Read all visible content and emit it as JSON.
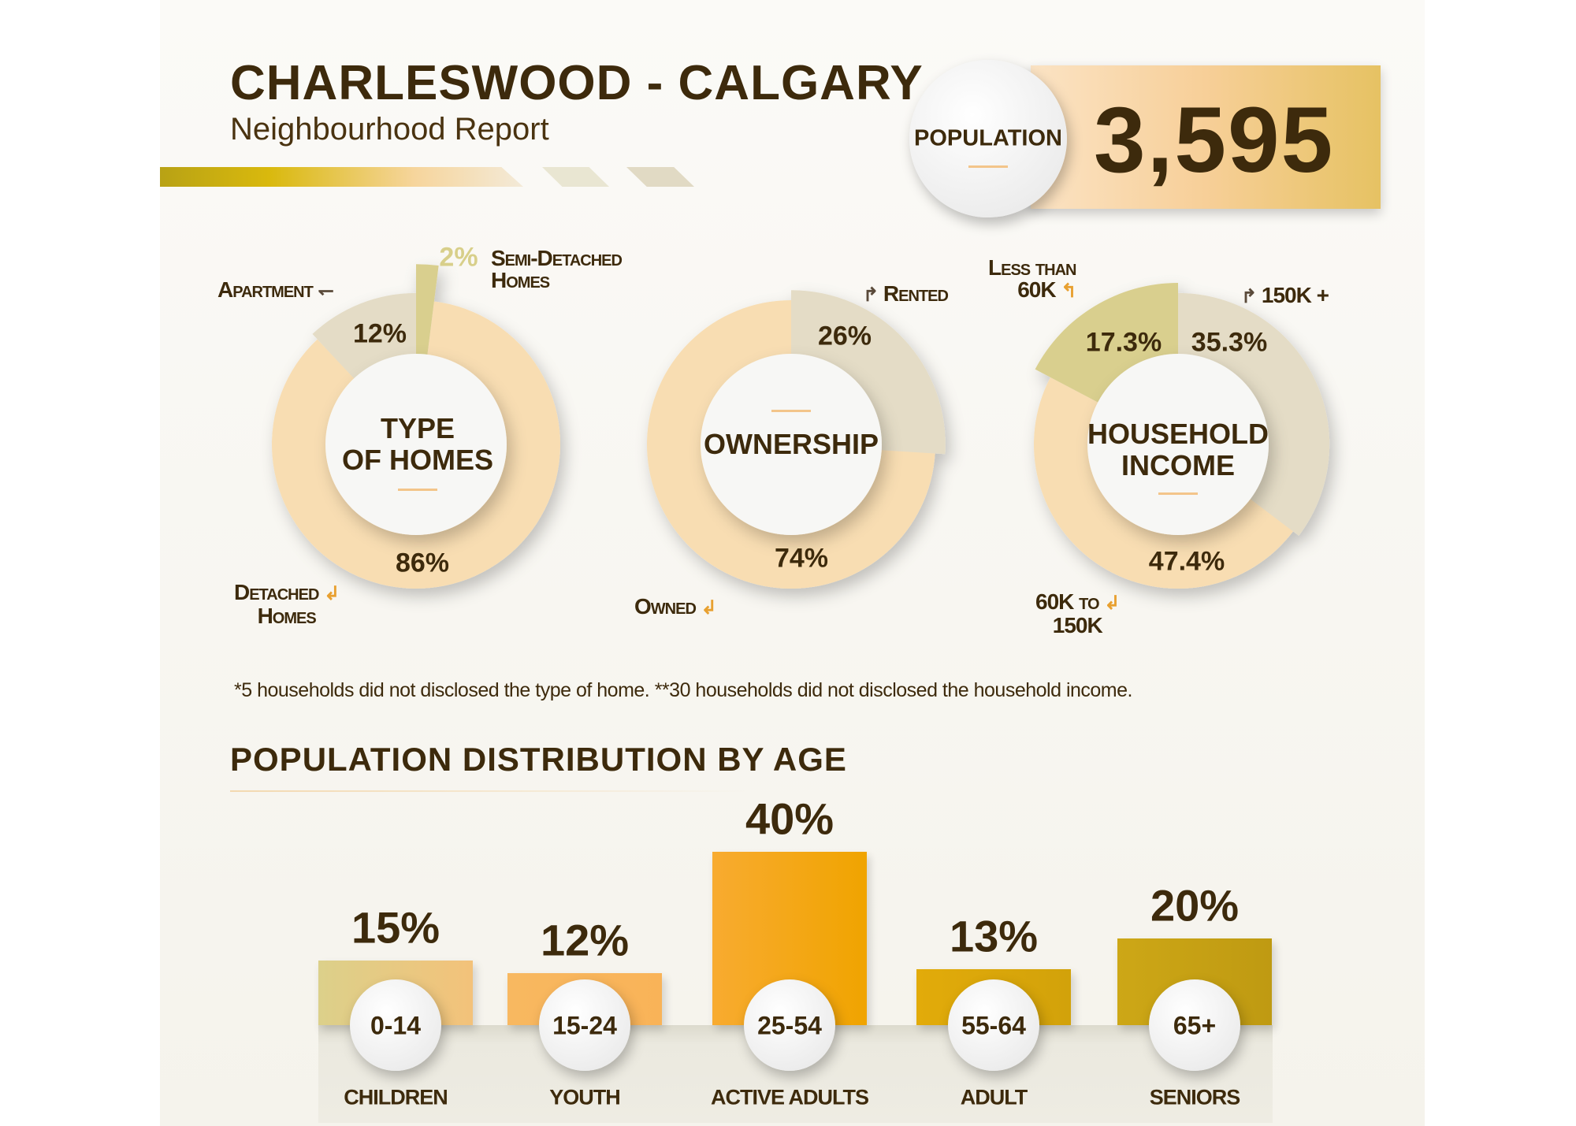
{
  "header": {
    "title": "CHARLESWOOD - CALGARY",
    "subtitle": "Neighbourhood Report",
    "population_label": "POPULATION",
    "population_value": "3,595"
  },
  "colors": {
    "text": "#3d2a0c",
    "peach": "#f8ddb2",
    "beige": "#e4dcc6",
    "olive": "#d9cf8e"
  },
  "footnote": "*5 households did not disclosed the type of home.  **30 households did not disclosed the household income.",
  "chart_data": [
    {
      "type": "pie",
      "title": "TYPE OF HOMES",
      "categories": [
        "Semi-Detached Homes",
        "Detached Homes",
        "Apartment"
      ],
      "values": [
        2,
        86,
        12
      ],
      "labels": [
        "2%",
        "86%",
        "12%"
      ]
    },
    {
      "type": "pie",
      "title": "OWNERSHIP",
      "categories": [
        "Rented",
        "Owned"
      ],
      "values": [
        26,
        74
      ],
      "labels": [
        "26%",
        "74%"
      ]
    },
    {
      "type": "pie",
      "title": "HOUSEHOLD INCOME",
      "categories": [
        "150K +",
        "60K to 150K",
        "Less than 60K"
      ],
      "values": [
        35.3,
        47.4,
        17.3
      ],
      "labels": [
        "35.3%",
        "47.4%",
        "17.3%"
      ]
    },
    {
      "type": "bar",
      "title": "POPULATION DISTRIBUTION BY AGE",
      "categories": [
        "0-14",
        "15-24",
        "25-54",
        "55-64",
        "65+"
      ],
      "groups": [
        "CHILDREN",
        "YOUTH",
        "ACTIVE ADULTS",
        "ADULT",
        "SENIORS"
      ],
      "values": [
        15,
        12,
        40,
        13,
        20
      ],
      "labels": [
        "15%",
        "12%",
        "40%",
        "13%",
        "20%"
      ],
      "ylim": [
        0,
        40
      ]
    }
  ],
  "donut_labels": {
    "homes": {
      "title1": "TYPE",
      "title2": "OF HOMES",
      "apartment": "Apartment",
      "semi1": "Semi-Detached",
      "semi2": "Homes",
      "detached1": "Detached",
      "detached2": "Homes"
    },
    "ownership": {
      "title": "OWNERSHIP",
      "rented": "Rented",
      "owned": "Owned"
    },
    "income": {
      "title1": "HOUSEHOLD",
      "title2": "INCOME",
      "less1": "Less than",
      "less2": "60K",
      "high": "150K +",
      "mid1": "60K to",
      "mid2": "150K"
    }
  }
}
